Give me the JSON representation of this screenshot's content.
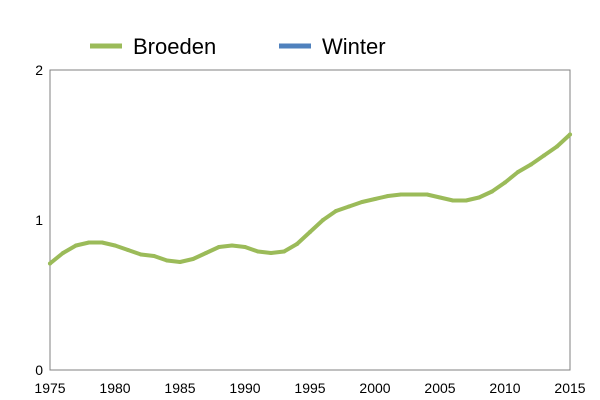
{
  "chart_data": {
    "type": "line",
    "title": "",
    "xlabel": "",
    "ylabel": "",
    "xlim": [
      1975,
      2015
    ],
    "ylim": [
      0,
      2
    ],
    "x_ticks": [
      "1975",
      "1980",
      "1985",
      "1990",
      "1995",
      "2000",
      "2005",
      "2010",
      "2015"
    ],
    "y_ticks": [
      "0",
      "1",
      "2"
    ],
    "grid": false,
    "legend_position": "top",
    "series": [
      {
        "name": "Broeden",
        "color": "#9bbb59",
        "x": [
          1975,
          1976,
          1977,
          1978,
          1979,
          1980,
          1981,
          1982,
          1983,
          1984,
          1985,
          1986,
          1987,
          1988,
          1989,
          1990,
          1991,
          1992,
          1993,
          1994,
          1995,
          1996,
          1997,
          1998,
          1999,
          2000,
          2001,
          2002,
          2003,
          2004,
          2005,
          2006,
          2007,
          2008,
          2009,
          2010,
          2011,
          2012,
          2013,
          2014,
          2015
        ],
        "values": [
          0.71,
          0.78,
          0.83,
          0.85,
          0.85,
          0.83,
          0.8,
          0.77,
          0.76,
          0.73,
          0.72,
          0.74,
          0.78,
          0.82,
          0.83,
          0.82,
          0.79,
          0.78,
          0.79,
          0.84,
          0.92,
          1.0,
          1.06,
          1.09,
          1.12,
          1.14,
          1.16,
          1.17,
          1.17,
          1.17,
          1.15,
          1.13,
          1.13,
          1.15,
          1.19,
          1.25,
          1.32,
          1.37,
          1.43,
          1.49,
          1.57
        ]
      },
      {
        "name": "Winter",
        "color": "#4f81bd",
        "x": [],
        "values": []
      }
    ]
  }
}
